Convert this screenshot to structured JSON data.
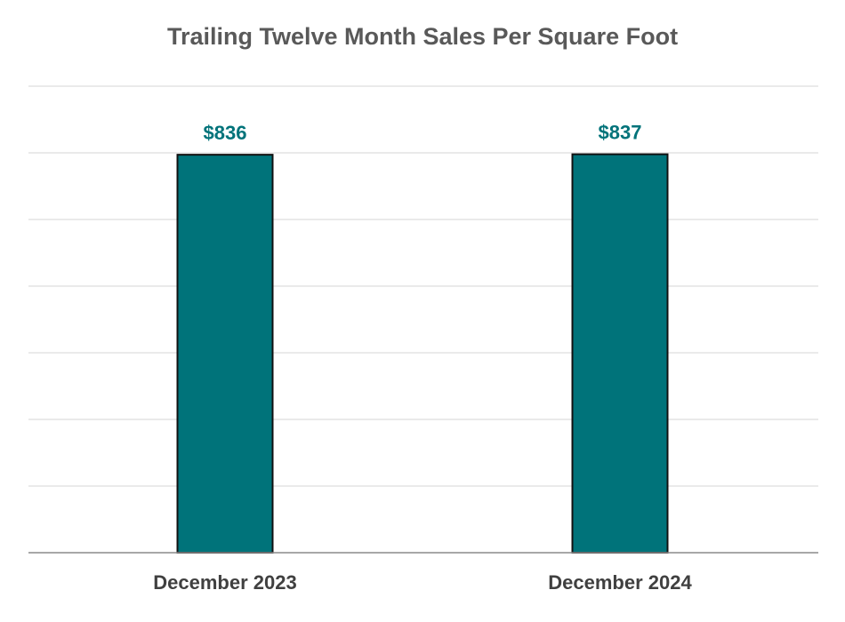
{
  "chart_data": {
    "type": "bar",
    "title": "Trailing Twelve Month Sales Per Square Foot",
    "categories": [
      "December 2023",
      "December 2024"
    ],
    "values": [
      836,
      837
    ],
    "data_labels": [
      "$836",
      "$837"
    ],
    "xlabel": "",
    "ylabel": "",
    "ylim": [
      0,
      980
    ],
    "gridlines": 7,
    "grid": true,
    "legend": "none",
    "colors": {
      "bar": "#00737a",
      "label": "#00737a"
    }
  }
}
